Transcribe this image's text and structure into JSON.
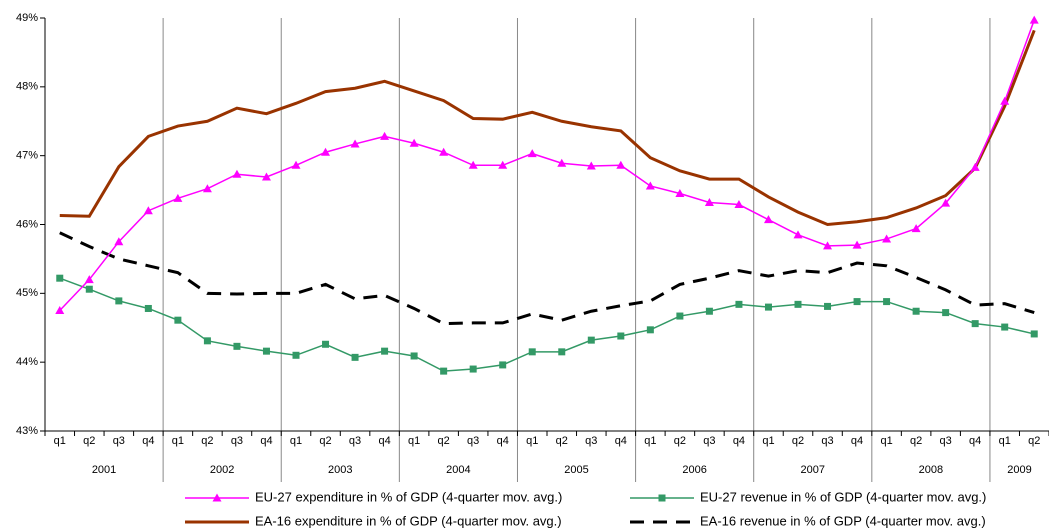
{
  "chart_data": {
    "type": "line",
    "categories": [
      "q1",
      "q2",
      "q3",
      "q4",
      "q1",
      "q2",
      "q3",
      "q4",
      "q1",
      "q2",
      "q3",
      "q4",
      "q1",
      "q2",
      "q3",
      "q4",
      "q1",
      "q2",
      "q3",
      "q4",
      "q1",
      "q2",
      "q3",
      "q4",
      "q1",
      "q2",
      "q3",
      "q4",
      "q1",
      "q2",
      "q3",
      "q4",
      "q1",
      "q2"
    ],
    "groups": [
      "2001",
      "2002",
      "2003",
      "2004",
      "2005",
      "2006",
      "2007",
      "2008",
      "2009"
    ],
    "series": [
      {
        "name": "EU-27 expenditure in % of GDP (4-quarter mov. avg.)",
        "color": "#ff00ff",
        "marker": "triangle",
        "dashed": false,
        "values": [
          44.75,
          45.2,
          45.75,
          46.2,
          46.38,
          46.52,
          46.73,
          46.69,
          46.86,
          47.05,
          47.17,
          47.28,
          47.18,
          47.05,
          46.86,
          46.86,
          47.03,
          46.89,
          46.85,
          46.86,
          46.56,
          46.45,
          46.32,
          46.29,
          46.07,
          45.85,
          45.69,
          45.7,
          45.79,
          45.94,
          46.31,
          46.83,
          47.79,
          48.97
        ]
      },
      {
        "name": "EU-27 revenue in % of GDP (4-quarter mov. avg.)",
        "color": "#339966",
        "marker": "square",
        "dashed": false,
        "values": [
          45.22,
          45.06,
          44.89,
          44.78,
          44.61,
          44.31,
          44.23,
          44.16,
          44.1,
          44.26,
          44.07,
          44.16,
          44.09,
          43.87,
          43.9,
          43.96,
          44.15,
          44.15,
          44.32,
          44.38,
          44.47,
          44.67,
          44.74,
          44.84,
          44.8,
          44.84,
          44.81,
          44.88,
          44.88,
          44.74,
          44.72,
          44.56,
          44.51,
          44.41
        ]
      },
      {
        "name": "EA-16 expenditure in % of GDP (4-quarter mov. avg.)",
        "color": "#993300",
        "marker": null,
        "dashed": false,
        "values": [
          46.13,
          46.12,
          46.84,
          47.28,
          47.43,
          47.5,
          47.69,
          47.61,
          47.76,
          47.93,
          47.98,
          48.08,
          47.94,
          47.8,
          47.54,
          47.53,
          47.63,
          47.5,
          47.42,
          47.36,
          46.97,
          46.78,
          46.66,
          46.66,
          46.4,
          46.18,
          46.0,
          46.04,
          46.1,
          46.24,
          46.42,
          46.82,
          47.72,
          48.82
        ]
      },
      {
        "name": "EA-16 revenue in % of GDP (4-quarter mov. avg.)",
        "color": "#000000",
        "marker": null,
        "dashed": true,
        "values": [
          45.88,
          45.68,
          45.5,
          45.4,
          45.3,
          45.0,
          44.99,
          45.0,
          45.0,
          45.13,
          44.92,
          44.97,
          44.78,
          44.56,
          44.57,
          44.57,
          44.7,
          44.61,
          44.74,
          44.82,
          44.89,
          45.13,
          45.22,
          45.33,
          45.25,
          45.33,
          45.3,
          45.44,
          45.4,
          45.23,
          45.05,
          44.83,
          44.85,
          44.72
        ]
      }
    ],
    "ylim": [
      43,
      49
    ],
    "yticks": [
      {
        "value": 43,
        "label": "43%"
      },
      {
        "value": 44,
        "label": "44%"
      },
      {
        "value": 45,
        "label": "45%"
      },
      {
        "value": 46,
        "label": "46%"
      },
      {
        "value": 47,
        "label": "47%"
      },
      {
        "value": 48,
        "label": "48%"
      },
      {
        "value": 49,
        "label": "49%"
      }
    ],
    "grid": false
  }
}
